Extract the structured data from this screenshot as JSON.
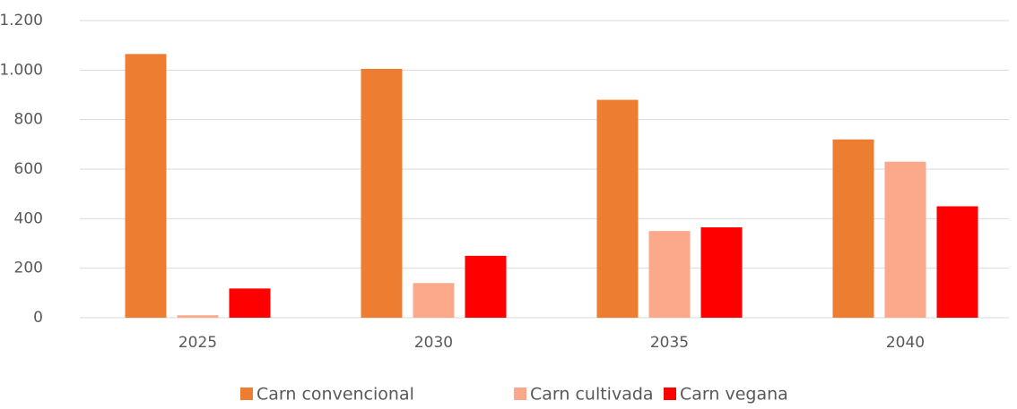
{
  "chart_data": {
    "type": "bar",
    "categories": [
      "2025",
      "2030",
      "2035",
      "2040"
    ],
    "series": [
      {
        "name": "Carn convencional",
        "color": "#ED7D31",
        "values": [
          1065,
          1005,
          880,
          720
        ]
      },
      {
        "name": "Carn cultivada",
        "color": "#FBA98A",
        "values": [
          10,
          140,
          350,
          630
        ]
      },
      {
        "name": "Carn vegana",
        "color": "#FF0000",
        "values": [
          118,
          250,
          365,
          450
        ]
      }
    ],
    "ylim": [
      0,
      1200
    ],
    "yticks": [
      0,
      200,
      400,
      600,
      800,
      {
        "value": 1000,
        "label": "1.000"
      },
      {
        "value": 1200,
        "label": "1.200"
      }
    ],
    "grid": true,
    "legend": "bottom"
  }
}
